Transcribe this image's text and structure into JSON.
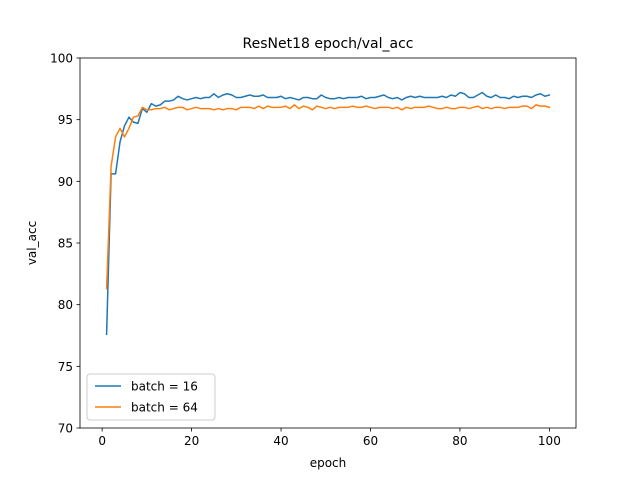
{
  "chart_data": {
    "type": "line",
    "title": "ResNet18 epoch/val_acc",
    "xlabel": "epoch",
    "ylabel": "val_acc",
    "xlim": [
      -4.95,
      105.95
    ],
    "ylim": [
      70,
      100
    ],
    "xticks": [
      0,
      20,
      40,
      60,
      80,
      100
    ],
    "yticks": [
      70,
      75,
      80,
      85,
      90,
      95,
      100
    ],
    "grid": false,
    "legend_position": "lower-left",
    "x": [
      1,
      2,
      3,
      4,
      5,
      6,
      7,
      8,
      9,
      10,
      11,
      12,
      13,
      14,
      15,
      16,
      17,
      18,
      19,
      20,
      21,
      22,
      23,
      24,
      25,
      26,
      27,
      28,
      29,
      30,
      31,
      32,
      33,
      34,
      35,
      36,
      37,
      38,
      39,
      40,
      41,
      42,
      43,
      44,
      45,
      46,
      47,
      48,
      49,
      50,
      51,
      52,
      53,
      54,
      55,
      56,
      57,
      58,
      59,
      60,
      61,
      62,
      63,
      64,
      65,
      66,
      67,
      68,
      69,
      70,
      71,
      72,
      73,
      74,
      75,
      76,
      77,
      78,
      79,
      80,
      81,
      82,
      83,
      84,
      85,
      86,
      87,
      88,
      89,
      90,
      91,
      92,
      93,
      94,
      95,
      96,
      97,
      98,
      99,
      100
    ],
    "series": [
      {
        "name": "batch = 16",
        "color": "#1f77b4",
        "values": [
          77.6,
          90.6,
          90.6,
          93.2,
          94.5,
          95.2,
          94.8,
          94.7,
          95.9,
          95.6,
          96.3,
          96.1,
          96.2,
          96.5,
          96.5,
          96.6,
          96.9,
          96.7,
          96.6,
          96.7,
          96.8,
          96.7,
          96.8,
          96.8,
          97.1,
          96.8,
          97.0,
          97.1,
          97.0,
          96.8,
          96.8,
          96.9,
          97.0,
          96.9,
          96.9,
          97.0,
          96.8,
          96.8,
          96.8,
          96.9,
          96.7,
          96.8,
          96.7,
          96.6,
          96.8,
          96.8,
          96.7,
          96.7,
          97.0,
          96.8,
          96.7,
          96.7,
          96.8,
          96.7,
          96.8,
          96.8,
          96.8,
          96.9,
          96.7,
          96.8,
          96.8,
          96.9,
          97.0,
          96.8,
          96.7,
          96.8,
          96.6,
          96.8,
          96.9,
          96.8,
          96.9,
          96.8,
          96.8,
          96.8,
          96.8,
          96.9,
          96.8,
          97.0,
          96.9,
          97.2,
          97.1,
          96.8,
          96.8,
          97.0,
          97.2,
          96.9,
          96.8,
          97.0,
          96.8,
          96.8,
          96.7,
          96.9,
          96.8,
          96.9,
          96.9,
          96.8,
          97.0,
          97.1,
          96.9,
          97.0
        ]
      },
      {
        "name": "batch = 64",
        "color": "#ff7f0e",
        "values": [
          81.3,
          91.2,
          93.6,
          94.3,
          93.6,
          94.3,
          95.2,
          95.3,
          96.0,
          95.8,
          95.8,
          95.9,
          95.9,
          96.0,
          95.8,
          95.9,
          96.0,
          96.0,
          95.8,
          95.9,
          96.0,
          95.9,
          95.9,
          95.9,
          95.8,
          95.9,
          95.8,
          95.9,
          95.9,
          95.8,
          96.0,
          96.0,
          96.0,
          95.9,
          96.1,
          95.9,
          96.1,
          96.0,
          96.0,
          96.0,
          96.1,
          95.9,
          96.2,
          95.9,
          96.1,
          96.0,
          95.8,
          96.1,
          96.0,
          95.9,
          96.0,
          95.9,
          96.0,
          96.0,
          96.0,
          96.1,
          96.0,
          96.0,
          96.1,
          96.0,
          95.9,
          96.0,
          96.0,
          96.0,
          95.9,
          96.0,
          95.8,
          96.0,
          95.9,
          96.0,
          96.0,
          96.0,
          96.1,
          96.0,
          95.9,
          95.9,
          96.0,
          95.9,
          95.9,
          96.0,
          96.0,
          95.9,
          96.0,
          96.1,
          95.9,
          96.0,
          95.9,
          96.0,
          96.0,
          95.9,
          96.0,
          96.0,
          96.0,
          96.1,
          96.1,
          95.9,
          96.2,
          96.1,
          96.1,
          96.0
        ]
      }
    ]
  }
}
